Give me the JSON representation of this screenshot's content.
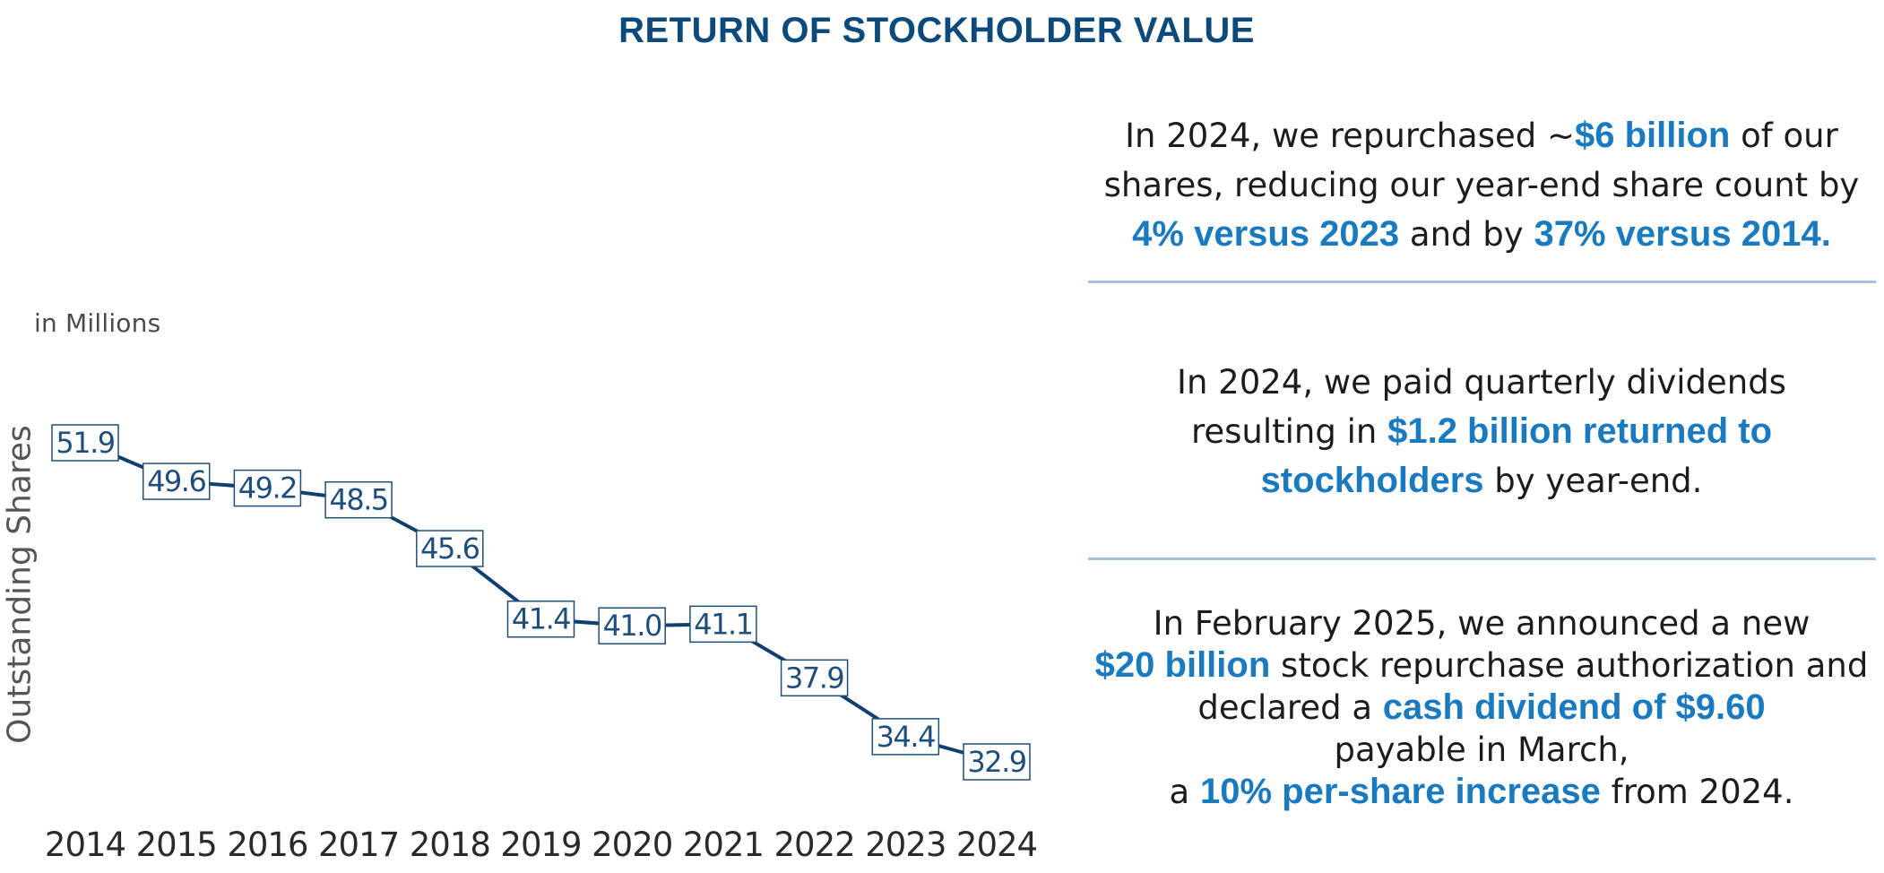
{
  "header": {
    "title": "RETURN OF STOCKHOLDER VALUE"
  },
  "colors": {
    "title": "#0d4a7c",
    "highlight": "#1a7abf",
    "line": "#0f4070",
    "label_border": "#1f4e7d",
    "divider": "#a7bfdc"
  },
  "chart_data": {
    "type": "line",
    "title": "",
    "units_note": "in Millions",
    "xlabel": "",
    "ylabel": "Outstanding Shares",
    "categories": [
      "2014",
      "2015",
      "2016",
      "2017",
      "2018",
      "2019",
      "2020",
      "2021",
      "2022",
      "2023",
      "2024"
    ],
    "series": [
      {
        "name": "Outstanding Shares",
        "values": [
          51.9,
          49.6,
          49.2,
          48.5,
          45.6,
          41.4,
          41.0,
          41.1,
          37.9,
          34.4,
          32.9
        ],
        "labels": [
          "51.9",
          "49.6",
          "49.2",
          "48.5",
          "45.6",
          "41.4",
          "41.0",
          "41.1",
          "37.9",
          "34.4",
          "32.9"
        ]
      }
    ],
    "ylim": [
      32.9,
      51.9
    ],
    "grid": false,
    "legend": "none",
    "data_labels": "boxed"
  },
  "panels": [
    {
      "lines": [
        [
          {
            "t": "In 2024, we repurchased ~",
            "hl": false
          },
          {
            "t": "$6 billion",
            "hl": true
          },
          {
            "t": " of our",
            "hl": false
          }
        ],
        [
          {
            "t": "shares, reducing our year-end share count by",
            "hl": false
          }
        ],
        [
          {
            "t": "4% versus 2023",
            "hl": true
          },
          {
            "t": " and by ",
            "hl": false
          },
          {
            "t": "37% versus 2014.",
            "hl": true
          }
        ]
      ]
    },
    {
      "lines": [
        [
          {
            "t": "In 2024, we paid quarterly dividends",
            "hl": false
          }
        ],
        [
          {
            "t": "resulting in ",
            "hl": false
          },
          {
            "t": "$1.2 billion returned to",
            "hl": true
          }
        ],
        [
          {
            "t": "stockholders",
            "hl": true
          },
          {
            "t": " by year-end.",
            "hl": false
          }
        ]
      ]
    },
    {
      "lines": [
        [
          {
            "t": "In February 2025, we announced a new",
            "hl": false
          }
        ],
        [
          {
            "t": "$20 billion",
            "hl": true
          },
          {
            "t": " stock repurchase authorization and",
            "hl": false
          }
        ],
        [
          {
            "t": "declared a ",
            "hl": false
          },
          {
            "t": "cash dividend of $9.60",
            "hl": true
          }
        ],
        [
          {
            "t": "payable in March,",
            "hl": false
          }
        ],
        [
          {
            "t": "a ",
            "hl": false
          },
          {
            "t": "10% per-share increase",
            "hl": true
          },
          {
            "t": " from 2024.",
            "hl": false
          }
        ]
      ]
    }
  ]
}
